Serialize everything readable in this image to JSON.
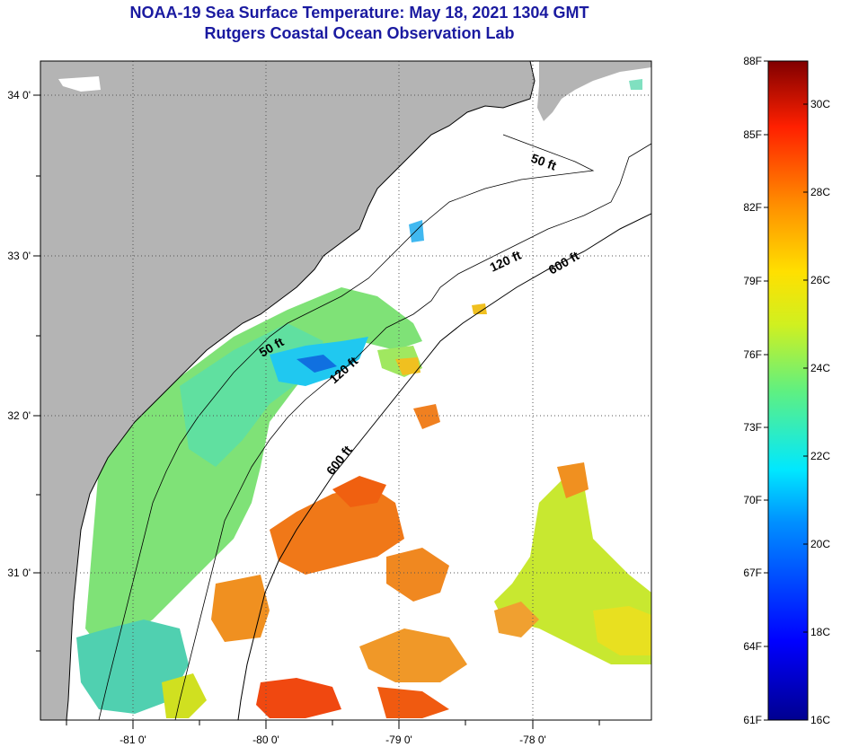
{
  "header": {
    "title": "NOAA-19 Sea Surface Temperature:  May 18, 2021 1304 GMT",
    "subtitle": "Rutgers Coastal Ocean Observation Lab"
  },
  "map": {
    "lon_labels": [
      "-81 0'",
      "-80 0'",
      "-79 0'",
      "-78 0'"
    ],
    "lat_labels": [
      "34 0'",
      "33 0'",
      "32 0'",
      "31 0'"
    ],
    "depth_labels": [
      {
        "text": "50 ft"
      },
      {
        "text": "50 ft"
      },
      {
        "text": "120 ft"
      },
      {
        "text": "120 ft"
      },
      {
        "text": "600 ft"
      },
      {
        "text": "600 ft"
      }
    ],
    "colors": {
      "land": "#b4b4b4",
      "ocean_no_data": "#ffffff",
      "coastline": "#000000",
      "gridline": "#555555"
    }
  },
  "colorbar": {
    "fahrenheit_labels": [
      "88F",
      "85F",
      "82F",
      "79F",
      "76F",
      "73F",
      "70F",
      "67F",
      "64F",
      "61F"
    ],
    "celsius_labels": [
      "30C",
      "28C",
      "26C",
      "24C",
      "22C",
      "20C",
      "18C",
      "16C"
    ],
    "fahrenheit_range": [
      61,
      88
    ],
    "celsius_range": [
      16,
      31.1
    ]
  }
}
